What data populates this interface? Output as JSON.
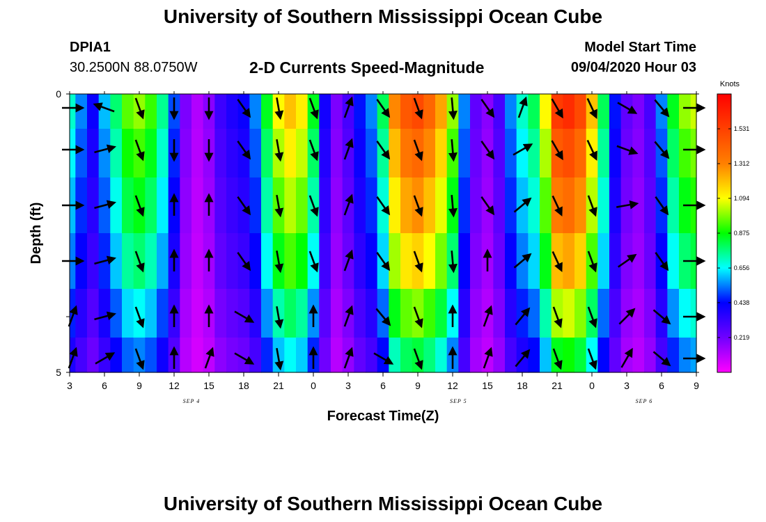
{
  "page": {
    "title_top": "University of Southern Mississippi Ocean Cube",
    "title_bottom": "University of Southern Mississippi Ocean Cube",
    "station_id": "DPIA1",
    "station_location": "30.2500N 88.0750W",
    "plot_title": "2-D Currents Speed-Magnitude",
    "model_start_label": "Model Start Time",
    "model_start_value": "09/04/2020 Hour 03"
  },
  "chart_data": {
    "type": "heatmap",
    "title": "2-D Currents Speed-Magnitude",
    "xlabel": "Forecast Time(Z)",
    "ylabel": "Depth (ft)",
    "x_hours_range": [
      3,
      57
    ],
    "x_ticks": [
      {
        "label": "3",
        "h": 3
      },
      {
        "label": "6",
        "h": 6
      },
      {
        "label": "9",
        "h": 9
      },
      {
        "label": "12",
        "h": 12
      },
      {
        "label": "15",
        "h": 15
      },
      {
        "label": "18",
        "h": 18
      },
      {
        "label": "21",
        "h": 21
      },
      {
        "label": "0",
        "h": 24
      },
      {
        "label": "3",
        "h": 27
      },
      {
        "label": "6",
        "h": 30
      },
      {
        "label": "9",
        "h": 33
      },
      {
        "label": "12",
        "h": 36
      },
      {
        "label": "15",
        "h": 39
      },
      {
        "label": "18",
        "h": 42
      },
      {
        "label": "21",
        "h": 45
      },
      {
        "label": "0",
        "h": 48
      },
      {
        "label": "3",
        "h": 51
      },
      {
        "label": "6",
        "h": 54
      },
      {
        "label": "9",
        "h": 57
      }
    ],
    "date_labels": [
      {
        "label": "SEP 4",
        "h": 13.5
      },
      {
        "label": "SEP 5",
        "h": 36.5
      },
      {
        "label": "SEP 6",
        "h": 52.5
      }
    ],
    "y_ticks": [
      {
        "label": "0",
        "d": 0
      },
      {
        "label": "5",
        "d": 5
      }
    ],
    "ylim": [
      0,
      5
    ],
    "colorbar": {
      "unit": "Knots",
      "min": 0.0,
      "max": 1.75,
      "tick_values": [
        0.219,
        0.438,
        0.656,
        0.875,
        1.094,
        1.312,
        1.531
      ],
      "tick_labels": [
        "0.219",
        "0.438",
        "0.656",
        "0.875",
        "1.094",
        "1.312",
        "1.531"
      ]
    },
    "depth_levels": [
      0.25,
      1.0,
      2.0,
      3.0,
      4.0,
      4.75
    ],
    "time_hours": [
      3,
      4,
      5,
      6,
      7,
      8,
      9,
      10,
      11,
      12,
      13,
      14,
      15,
      16,
      17,
      18,
      19,
      20,
      21,
      22,
      23,
      24,
      25,
      26,
      27,
      28,
      29,
      30,
      31,
      32,
      33,
      34,
      35,
      36,
      37,
      38,
      39,
      40,
      41,
      42,
      43,
      44,
      45,
      46,
      47,
      48,
      49,
      50,
      51,
      52,
      53,
      54,
      55,
      56,
      57
    ],
    "surface_speed": [
      0.7,
      0.55,
      0.42,
      0.6,
      0.78,
      0.95,
      1.0,
      0.92,
      0.75,
      0.5,
      0.2,
      0.12,
      0.18,
      0.32,
      0.38,
      0.42,
      0.55,
      0.85,
      1.1,
      1.2,
      1.12,
      0.85,
      0.4,
      0.2,
      0.3,
      0.45,
      0.55,
      0.8,
      1.3,
      1.45,
      1.5,
      1.4,
      1.25,
      1.0,
      0.55,
      0.25,
      0.18,
      0.3,
      0.55,
      0.7,
      0.8,
      1.1,
      1.55,
      1.6,
      1.5,
      1.2,
      0.8,
      0.45,
      0.25,
      0.2,
      0.3,
      0.55,
      0.85,
      1.0,
      1.05
    ],
    "depth_factors": [
      1.0,
      0.93,
      0.86,
      0.78,
      0.66,
      0.55
    ],
    "arrow_times": [
      3,
      6,
      9,
      12,
      15,
      18,
      21,
      24,
      27,
      30,
      33,
      36,
      39,
      42,
      45,
      48,
      51,
      54,
      57
    ],
    "arrows_deg": [
      [
        90,
        290,
        160,
        180,
        180,
        145,
        170,
        160,
        20,
        145,
        160,
        175,
        145,
        20,
        150,
        155,
        120,
        140,
        90
      ],
      [
        90,
        75,
        160,
        180,
        180,
        145,
        170,
        160,
        20,
        145,
        160,
        175,
        145,
        60,
        150,
        155,
        110,
        140,
        90
      ],
      [
        90,
        75,
        160,
        0,
        0,
        145,
        170,
        160,
        20,
        145,
        160,
        175,
        145,
        50,
        155,
        160,
        80,
        145,
        90
      ],
      [
        90,
        75,
        160,
        0,
        0,
        145,
        170,
        160,
        20,
        145,
        160,
        175,
        0,
        50,
        155,
        160,
        55,
        145,
        90
      ],
      [
        20,
        75,
        160,
        0,
        0,
        120,
        170,
        0,
        20,
        140,
        160,
        0,
        20,
        40,
        160,
        160,
        45,
        130,
        90
      ],
      [
        20,
        60,
        160,
        0,
        20,
        120,
        170,
        0,
        20,
        120,
        160,
        0,
        20,
        40,
        160,
        160,
        30,
        130,
        90
      ]
    ]
  }
}
